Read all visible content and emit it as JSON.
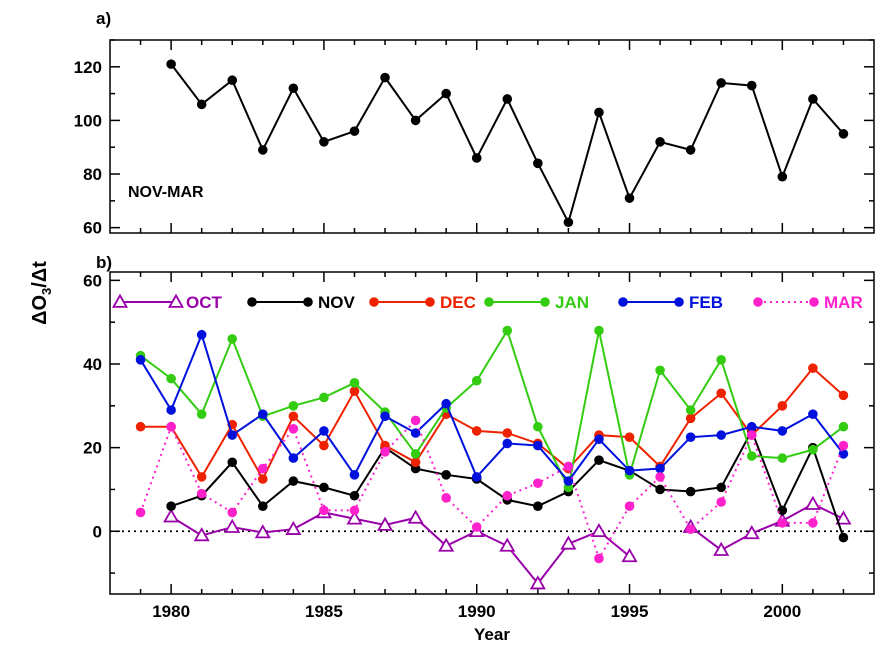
{
  "chart_data": [
    {
      "panel_label": "a)",
      "type": "line",
      "annotation": "NOV-MAR",
      "xlim": [
        1978,
        2003
      ],
      "ylim": [
        58,
        130
      ],
      "yticks": [
        "60",
        "80",
        "100",
        "120"
      ],
      "xlabel": "",
      "ylabel": "",
      "grid": false,
      "series": [
        {
          "color": "#000000",
          "marker": "circle",
          "line": "solid",
          "x": [
            1980,
            1981,
            1982,
            1983,
            1984,
            1985,
            1986,
            1987,
            1988,
            1989,
            1990,
            1991,
            1992,
            1993,
            1994,
            1995,
            1996,
            1997,
            1998,
            1999,
            2000,
            2001,
            2002
          ],
          "values": [
            121,
            106,
            115,
            89,
            112,
            92,
            96,
            116,
            100,
            110,
            86,
            108,
            84,
            62,
            103,
            71,
            92,
            89,
            114,
            113,
            79,
            108,
            95
          ]
        }
      ]
    },
    {
      "panel_label": "b)",
      "type": "line",
      "xlim": [
        1978,
        2003
      ],
      "ylim": [
        -15,
        62
      ],
      "yticks": [
        "0",
        "20",
        "40",
        "60"
      ],
      "xticks": [
        "1980",
        "1985",
        "1990",
        "1995",
        "2000"
      ],
      "xlabel": "Year",
      "ylabel_parts": {
        "delta1": "Δ",
        "o": "O",
        "sub": "3",
        "slash": "/",
        "delta2": "Δ",
        "t": "t"
      },
      "zero_line": "dotted",
      "legend_position": "top",
      "grid": false,
      "series": [
        {
          "name": "OCT",
          "color": "#9900aa",
          "marker": "triangle-open",
          "line": "solid",
          "x": [
            1979,
            1980,
            1981,
            1982,
            1983,
            1984,
            1985,
            1986,
            1987,
            1988,
            1989,
            1990,
            1991,
            1992,
            1993,
            1994,
            1995
          ],
          "values": [
            null,
            3.5,
            -1,
            1,
            -0.3,
            0.5,
            4.5,
            3,
            1.5,
            3.2,
            -3.5,
            0,
            -3.5,
            -12.5,
            -3,
            0,
            -6
          ]
        },
        {
          "name": "OCT",
          "color": "#9900aa",
          "marker": "triangle-open",
          "line": "solid",
          "legend": false,
          "x": [
            1997,
            1998,
            1999,
            2000,
            2001,
            2002
          ],
          "values": [
            1,
            -4.5,
            -0.5,
            2.5,
            6.5,
            3
          ]
        },
        {
          "name": "NOV",
          "color": "#000000",
          "marker": "circle",
          "line": "solid",
          "x": [
            1980,
            1981,
            1982,
            1983,
            1984,
            1985,
            1986,
            1987,
            1988,
            1989,
            1990,
            1991,
            1992,
            1993,
            1994,
            1995,
            1996,
            1997,
            1998,
            1999,
            2000,
            2001,
            2002
          ],
          "values": [
            6,
            8.5,
            16.5,
            6,
            12,
            10.5,
            8.5,
            20,
            15,
            13.5,
            12.5,
            7.5,
            6,
            9.5,
            17,
            14.5,
            10,
            9.5,
            10.5,
            24,
            5,
            20,
            -1.5
          ]
        },
        {
          "name": "DEC",
          "color": "#ee2200",
          "marker": "circle",
          "line": "solid",
          "x": [
            1979,
            1980,
            1981,
            1982,
            1983,
            1984,
            1985,
            1986,
            1987,
            1988,
            1989,
            1990,
            1991,
            1992,
            1993,
            1994,
            1995,
            1996,
            1997,
            1998,
            1999,
            2000,
            2001,
            2002
          ],
          "values": [
            25,
            25,
            13,
            25.5,
            12.5,
            27.5,
            20.5,
            33.5,
            20.5,
            16.5,
            28,
            24,
            23.5,
            21,
            15,
            23,
            22.5,
            15.5,
            27,
            33,
            23,
            30,
            39,
            32.5
          ]
        },
        {
          "name": "JAN",
          "color": "#33cc11",
          "marker": "circle",
          "line": "solid",
          "x": [
            1979,
            1980,
            1981,
            1982,
            1983,
            1984,
            1985,
            1986,
            1987,
            1988,
            1989,
            1990,
            1991,
            1992,
            1993,
            1994,
            1995,
            1996,
            1997,
            1998,
            1999,
            2000,
            2001,
            2002
          ],
          "values": [
            42,
            36.5,
            28,
            46,
            27.5,
            30,
            32,
            35.5,
            28.5,
            18.5,
            29.5,
            36,
            48,
            25,
            10.5,
            48,
            13.5,
            38.5,
            29,
            41,
            18,
            17.5,
            19.5,
            25
          ]
        },
        {
          "name": "FEB",
          "color": "#0011dd",
          "marker": "circle",
          "line": "solid",
          "x": [
            1979,
            1980,
            1981,
            1982,
            1983,
            1984,
            1985,
            1986,
            1987,
            1988,
            1989,
            1990,
            1991,
            1992,
            1993,
            1994,
            1995,
            1996,
            1997,
            1998,
            1999,
            2000,
            2001,
            2002
          ],
          "values": [
            41,
            29,
            47,
            23,
            28,
            17.5,
            24,
            13.5,
            27.5,
            23.5,
            30.5,
            13,
            21,
            20.5,
            12,
            22,
            14.5,
            15,
            22.5,
            23,
            25,
            24,
            28,
            18.5
          ]
        },
        {
          "name": "MAR",
          "color": "#ff22cc",
          "marker": "circle",
          "line": "dotted",
          "x": [
            1979,
            1980,
            1981,
            1982,
            1983,
            1984,
            1985,
            1986,
            1987,
            1988,
            1989,
            1990,
            1991,
            1992,
            1993,
            1994,
            1995,
            1996,
            1997,
            1998,
            1999,
            2000,
            2001,
            2002
          ],
          "values": [
            4.5,
            25,
            9,
            4.5,
            15,
            24.5,
            5,
            5,
            19,
            26.5,
            8,
            1,
            8.5,
            11.5,
            15.5,
            -6.5,
            6,
            13,
            0.5,
            7,
            23,
            2,
            2,
            20.5
          ]
        }
      ]
    }
  ]
}
